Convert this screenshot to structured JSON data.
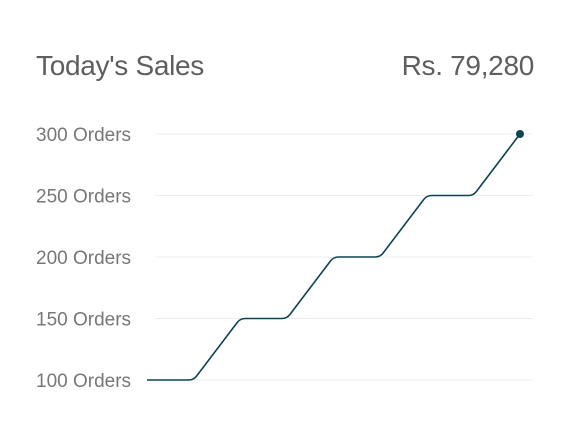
{
  "card": {
    "title": "Today's Sales",
    "total": "Rs. 79,280"
  },
  "chart_data": {
    "type": "line",
    "title": "",
    "xlabel": "",
    "ylabel": "",
    "y_tick_labels": [
      "300 Orders",
      "250 Orders",
      "200 Orders",
      "150 Orders",
      "100 Orders"
    ],
    "y_ticks": [
      300,
      250,
      200,
      150,
      100
    ],
    "ylim": [
      100,
      300
    ],
    "grid": true,
    "legend": "none",
    "line_color": "#0d4452",
    "grid_color": "#ececec",
    "series": [
      {
        "values": [
          100,
          100,
          150,
          150,
          200,
          200,
          250,
          250,
          300
        ]
      }
    ],
    "x": [
      0,
      1,
      2,
      3,
      4,
      5,
      6,
      7,
      8
    ],
    "marker_last_point": true
  }
}
